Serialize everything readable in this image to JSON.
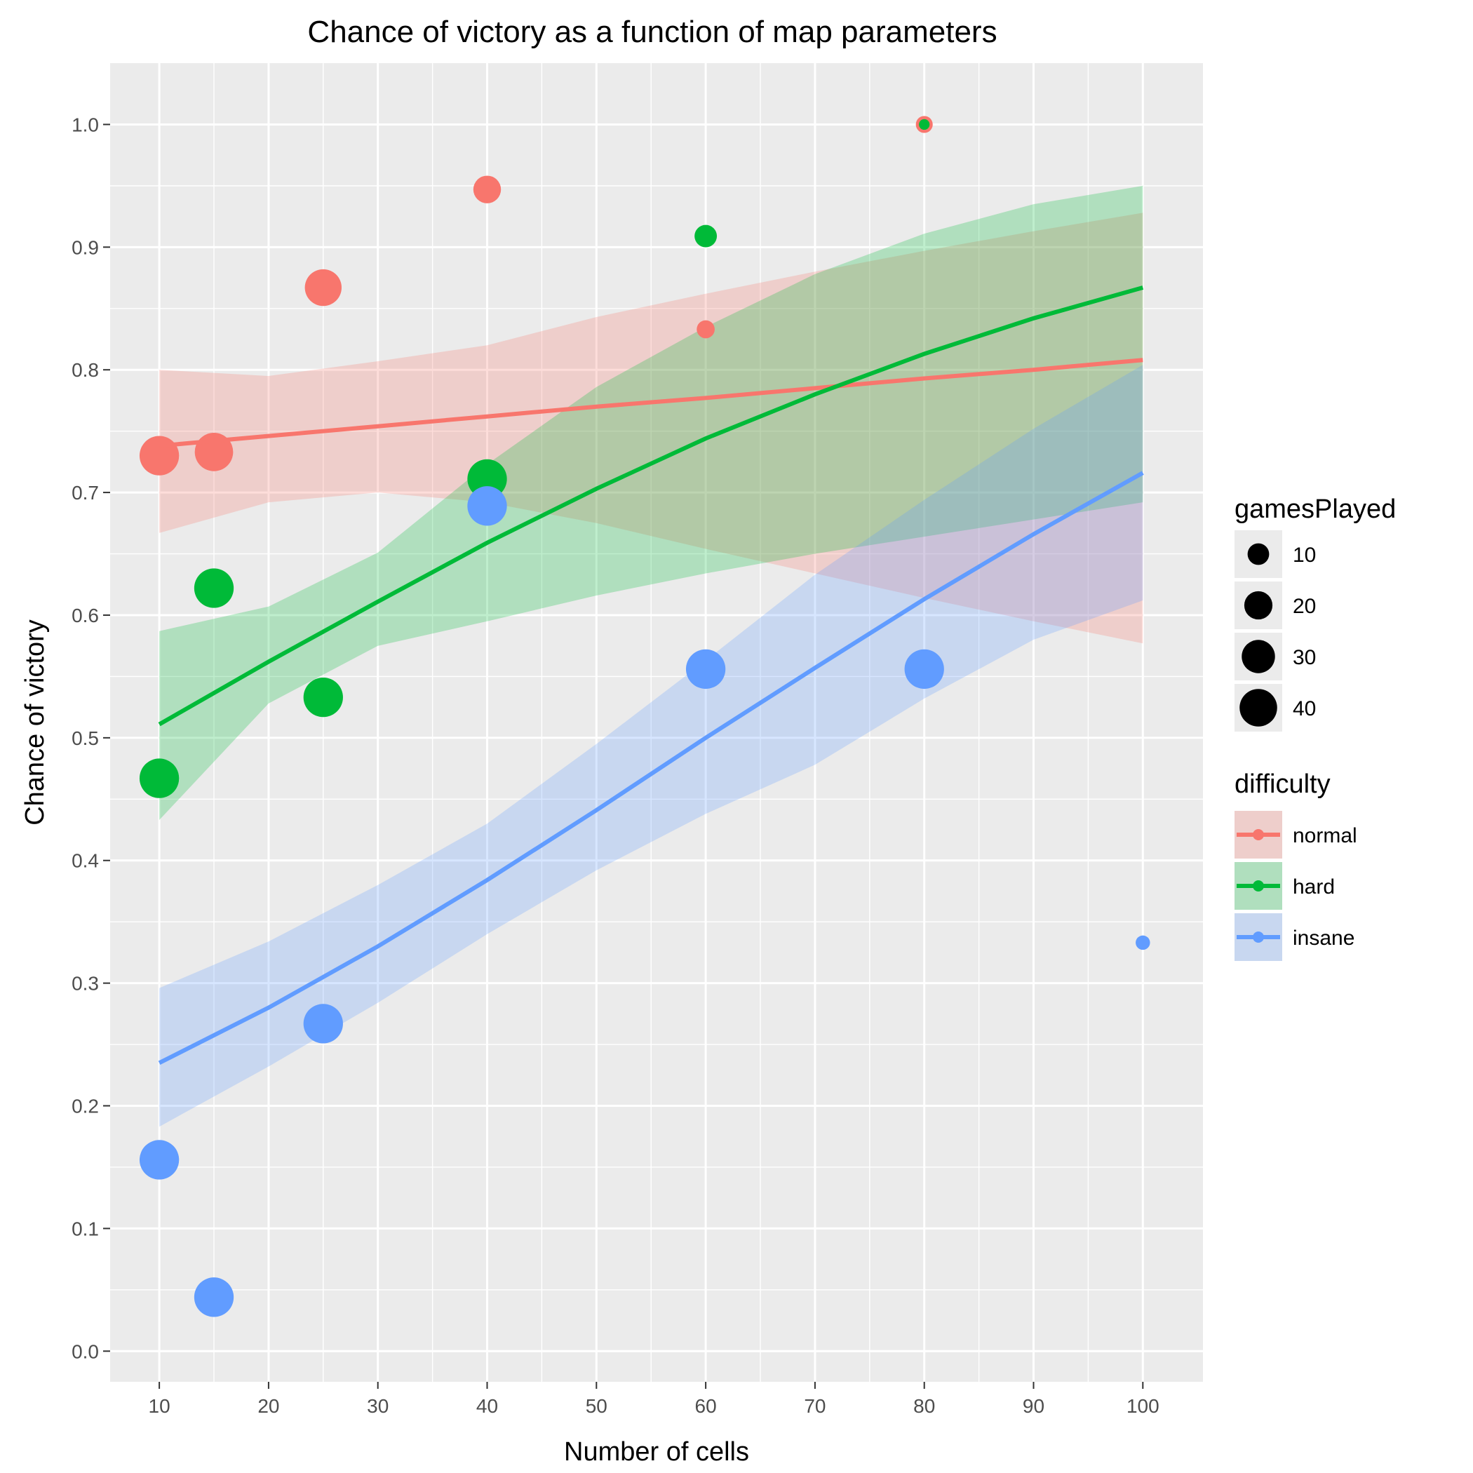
{
  "chart_data": {
    "type": "scatter",
    "title": "Chance of victory as a function of map parameters",
    "xlabel": "Number of cells",
    "ylabel": "Chance of victory",
    "xlim": [
      5.5,
      105.5
    ],
    "ylim": [
      -0.025,
      1.05
    ],
    "xticks": [
      10,
      20,
      30,
      40,
      50,
      60,
      70,
      80,
      90,
      100
    ],
    "yticks": [
      0.0,
      0.1,
      0.2,
      0.3,
      0.4,
      0.5,
      0.6,
      0.7,
      0.8,
      0.9,
      1.0
    ],
    "ytick_labels": [
      "0.0",
      "0.1",
      "0.2",
      "0.3",
      "0.4",
      "0.5",
      "0.6",
      "0.7",
      "0.8",
      "0.9",
      "1.0"
    ],
    "grid": true,
    "size_legend": {
      "title": "gamesPlayed",
      "entries": [
        {
          "label": "10",
          "value": 10
        },
        {
          "label": "20",
          "value": 20
        },
        {
          "label": "30",
          "value": 30
        },
        {
          "label": "40",
          "value": 40
        }
      ]
    },
    "color_legend": {
      "title": "difficulty",
      "position": "right"
    },
    "series": [
      {
        "name": "normal",
        "color": "#F8766D",
        "points": [
          {
            "x": 10,
            "y": 0.73,
            "gamesPlayed": 45
          },
          {
            "x": 15,
            "y": 0.733,
            "gamesPlayed": 42
          },
          {
            "x": 25,
            "y": 0.867,
            "gamesPlayed": 38
          },
          {
            "x": 40,
            "y": 0.947,
            "gamesPlayed": 19
          },
          {
            "x": 60,
            "y": 0.833,
            "gamesPlayed": 6
          },
          {
            "x": 80,
            "y": 1.0,
            "gamesPlayed": 5
          }
        ],
        "fit": {
          "x": [
            10,
            20,
            30,
            40,
            50,
            60,
            70,
            80,
            90,
            100
          ],
          "y": [
            0.738,
            0.746,
            0.754,
            0.762,
            0.77,
            0.777,
            0.785,
            0.793,
            0.8,
            0.808
          ],
          "lower": [
            0.667,
            0.692,
            0.7,
            0.692,
            0.675,
            0.654,
            0.634,
            0.614,
            0.595,
            0.577
          ],
          "upper": [
            0.8,
            0.795,
            0.807,
            0.82,
            0.843,
            0.862,
            0.88,
            0.897,
            0.913,
            0.928
          ]
        }
      },
      {
        "name": "hard",
        "color": "#00BA38",
        "points": [
          {
            "x": 10,
            "y": 0.467,
            "gamesPlayed": 45
          },
          {
            "x": 15,
            "y": 0.622,
            "gamesPlayed": 45
          },
          {
            "x": 25,
            "y": 0.533,
            "gamesPlayed": 45
          },
          {
            "x": 40,
            "y": 0.711,
            "gamesPlayed": 45
          },
          {
            "x": 60,
            "y": 0.909,
            "gamesPlayed": 11
          },
          {
            "x": 80,
            "y": 1.0,
            "gamesPlayed": 1
          }
        ],
        "fit": {
          "x": [
            10,
            20,
            30,
            40,
            50,
            60,
            70,
            80,
            90,
            100
          ],
          "y": [
            0.511,
            0.562,
            0.611,
            0.659,
            0.703,
            0.744,
            0.78,
            0.813,
            0.842,
            0.867
          ],
          "lower": [
            0.433,
            0.528,
            0.575,
            0.595,
            0.616,
            0.634,
            0.65,
            0.664,
            0.678,
            0.692
          ],
          "upper": [
            0.587,
            0.607,
            0.651,
            0.723,
            0.786,
            0.835,
            0.878,
            0.911,
            0.935,
            0.95
          ]
        }
      },
      {
        "name": "insane",
        "color": "#619CFF",
        "points": [
          {
            "x": 10,
            "y": 0.156,
            "gamesPlayed": 45
          },
          {
            "x": 15,
            "y": 0.044,
            "gamesPlayed": 45
          },
          {
            "x": 25,
            "y": 0.267,
            "gamesPlayed": 45
          },
          {
            "x": 40,
            "y": 0.689,
            "gamesPlayed": 45
          },
          {
            "x": 60,
            "y": 0.556,
            "gamesPlayed": 45
          },
          {
            "x": 80,
            "y": 0.556,
            "gamesPlayed": 45
          },
          {
            "x": 100,
            "y": 0.333,
            "gamesPlayed": 3
          }
        ],
        "fit": {
          "x": [
            10,
            20,
            30,
            40,
            50,
            60,
            70,
            80,
            90,
            100
          ],
          "y": [
            0.235,
            0.28,
            0.33,
            0.384,
            0.441,
            0.5,
            0.557,
            0.613,
            0.666,
            0.716
          ],
          "lower": [
            0.183,
            0.232,
            0.284,
            0.34,
            0.392,
            0.438,
            0.478,
            0.532,
            0.58,
            0.612
          ],
          "upper": [
            0.296,
            0.334,
            0.38,
            0.43,
            0.495,
            0.563,
            0.633,
            0.694,
            0.752,
            0.804
          ]
        }
      }
    ]
  }
}
